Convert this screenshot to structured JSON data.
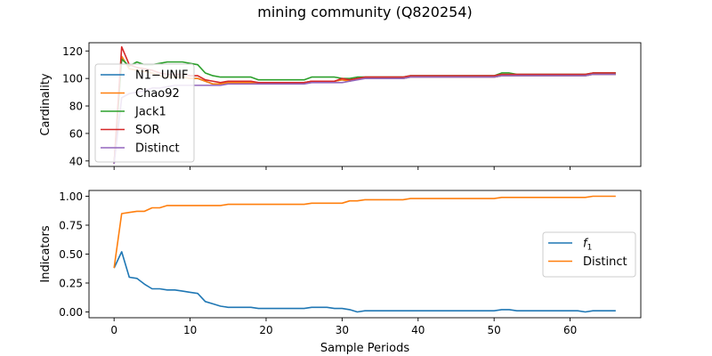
{
  "figure": {
    "title": "mining community (Q820254)"
  },
  "chart_data": [
    {
      "type": "line",
      "panel": "top",
      "ylabel": "Cardinality",
      "xlabel": "",
      "xlim": [
        -3.3,
        69.3
      ],
      "ylim": [
        36,
        126
      ],
      "xticks": [
        0,
        10,
        20,
        30,
        40,
        50,
        60
      ],
      "yticks": [
        40,
        60,
        80,
        100,
        120
      ],
      "show_xticklabels": false,
      "grid": false,
      "legend": "upper-left",
      "series": [
        {
          "name": "N1−UNIF",
          "color": "#1f77b4",
          "x": [
            0,
            1,
            2,
            3,
            4,
            5,
            6,
            7,
            8,
            9,
            10,
            11,
            12,
            13,
            14,
            15,
            16,
            17,
            18,
            19,
            20,
            25,
            26,
            29,
            30,
            31,
            32,
            33,
            38,
            39,
            50,
            51,
            52,
            53,
            61,
            62,
            63,
            66
          ],
          "y": [
            38,
            116,
            107,
            106,
            105,
            104,
            102,
            101,
            101,
            101,
            100,
            100,
            98,
            96,
            96,
            97,
            97,
            97,
            97,
            97,
            97,
            97,
            98,
            98,
            99,
            98,
            100,
            100,
            100,
            101,
            101,
            102,
            102,
            102,
            102,
            102,
            103,
            103
          ]
        },
        {
          "name": "Chao92",
          "color": "#ff7f0e",
          "x": [
            0,
            1,
            2,
            3,
            4,
            5,
            6,
            7,
            8,
            9,
            10,
            11,
            12,
            13,
            14,
            15,
            16,
            17,
            18,
            19,
            20,
            25,
            26,
            29,
            30,
            31,
            32,
            33,
            38,
            39,
            50,
            51,
            52,
            53,
            61,
            62,
            63,
            66
          ],
          "y": [
            38,
            116,
            107,
            106,
            105,
            104,
            102,
            101,
            101,
            101,
            100,
            100,
            98,
            96,
            96,
            97,
            97,
            97,
            97,
            97,
            97,
            97,
            98,
            98,
            99,
            98,
            100,
            100,
            100,
            101,
            101,
            102,
            102,
            102,
            102,
            102,
            103,
            103
          ]
        },
        {
          "name": "Jack1",
          "color": "#2ca02c",
          "x": [
            0,
            1,
            2,
            3,
            4,
            5,
            6,
            7,
            8,
            9,
            10,
            11,
            12,
            13,
            14,
            15,
            16,
            17,
            18,
            19,
            20,
            25,
            26,
            29,
            30,
            31,
            32,
            33,
            38,
            39,
            50,
            51,
            52,
            53,
            61,
            62,
            63,
            66
          ],
          "y": [
            38,
            114,
            109,
            112,
            110,
            110,
            111,
            112,
            112,
            112,
            111,
            110,
            104,
            102,
            101,
            101,
            101,
            101,
            101,
            99,
            99,
            99,
            101,
            101,
            100,
            100,
            101,
            101,
            101,
            102,
            102,
            104,
            104,
            103,
            103,
            103,
            104,
            104
          ]
        },
        {
          "name": "SOR",
          "color": "#d62728",
          "x": [
            0,
            1,
            2,
            3,
            4,
            5,
            6,
            7,
            8,
            9,
            10,
            11,
            12,
            13,
            14,
            15,
            16,
            17,
            18,
            19,
            20,
            25,
            26,
            29,
            30,
            31,
            32,
            33,
            38,
            39,
            50,
            51,
            52,
            53,
            61,
            62,
            63,
            66
          ],
          "y": [
            38,
            123,
            110,
            108,
            107,
            106,
            104,
            103,
            103,
            103,
            102,
            102,
            99,
            98,
            97,
            98,
            98,
            98,
            98,
            97,
            97,
            97,
            98,
            98,
            100,
            99,
            100,
            101,
            101,
            102,
            102,
            103,
            103,
            103,
            103,
            103,
            104,
            104
          ]
        },
        {
          "name": "Distinct",
          "color": "#9467bd",
          "x": [
            0,
            1,
            2,
            3,
            4,
            5,
            6,
            7,
            8,
            9,
            10,
            11,
            12,
            13,
            14,
            15,
            16,
            17,
            18,
            19,
            20,
            25,
            26,
            29,
            30,
            31,
            32,
            33,
            38,
            39,
            50,
            51,
            52,
            53,
            61,
            62,
            63,
            66
          ],
          "y": [
            38,
            86,
            89,
            90,
            91,
            93,
            93,
            94,
            95,
            95,
            95,
            95,
            95,
            95,
            95,
            96,
            96,
            96,
            96,
            96,
            96,
            96,
            97,
            97,
            97,
            98,
            99,
            100,
            100,
            101,
            101,
            102,
            102,
            102,
            102,
            102,
            103,
            103
          ]
        }
      ]
    },
    {
      "type": "line",
      "panel": "bottom",
      "ylabel": "Indicators",
      "xlabel": "Sample Periods",
      "xlim": [
        -3.3,
        69.3
      ],
      "ylim": [
        -0.05,
        1.05
      ],
      "xticks": [
        0,
        10,
        20,
        30,
        40,
        50,
        60
      ],
      "yticks": [
        0.0,
        0.25,
        0.5,
        0.75,
        1.0
      ],
      "ytick_labels": [
        "0.00",
        "0.25",
        "0.50",
        "0.75",
        "1.00"
      ],
      "show_xticklabels": true,
      "grid": false,
      "legend": "center-right",
      "series": [
        {
          "name": "f1",
          "name_main": "f",
          "name_sub": "1",
          "color": "#1f77b4",
          "x": [
            0,
            1,
            2,
            3,
            4,
            5,
            6,
            7,
            8,
            9,
            10,
            11,
            12,
            13,
            14,
            15,
            16,
            17,
            18,
            19,
            20,
            21,
            22,
            23,
            24,
            25,
            26,
            27,
            28,
            29,
            30,
            31,
            32,
            33,
            34,
            35,
            36,
            37,
            38,
            39,
            40,
            41,
            42,
            43,
            44,
            45,
            46,
            47,
            48,
            49,
            50,
            51,
            52,
            53,
            54,
            55,
            56,
            57,
            58,
            59,
            60,
            61,
            62,
            63,
            64,
            65,
            66
          ],
          "y": [
            0.38,
            0.52,
            0.3,
            0.29,
            0.24,
            0.2,
            0.2,
            0.19,
            0.19,
            0.18,
            0.17,
            0.16,
            0.09,
            0.07,
            0.05,
            0.04,
            0.04,
            0.04,
            0.04,
            0.03,
            0.03,
            0.03,
            0.03,
            0.03,
            0.03,
            0.03,
            0.04,
            0.04,
            0.04,
            0.03,
            0.03,
            0.02,
            0.0,
            0.01,
            0.01,
            0.01,
            0.01,
            0.01,
            0.01,
            0.01,
            0.01,
            0.01,
            0.01,
            0.01,
            0.01,
            0.01,
            0.01,
            0.01,
            0.01,
            0.01,
            0.01,
            0.02,
            0.02,
            0.01,
            0.01,
            0.01,
            0.01,
            0.01,
            0.01,
            0.01,
            0.01,
            0.01,
            0.0,
            0.01,
            0.01,
            0.01,
            0.01
          ]
        },
        {
          "name": "Distinct",
          "color": "#ff7f0e",
          "x": [
            0,
            1,
            2,
            3,
            4,
            5,
            6,
            7,
            8,
            9,
            10,
            11,
            12,
            13,
            14,
            15,
            16,
            17,
            18,
            19,
            20,
            21,
            22,
            23,
            24,
            25,
            26,
            27,
            28,
            29,
            30,
            31,
            32,
            33,
            34,
            35,
            36,
            37,
            38,
            39,
            40,
            41,
            42,
            43,
            44,
            45,
            46,
            47,
            48,
            49,
            50,
            51,
            52,
            53,
            54,
            55,
            56,
            57,
            58,
            59,
            60,
            61,
            62,
            63,
            64,
            65,
            66
          ],
          "y": [
            0.38,
            0.85,
            0.86,
            0.87,
            0.87,
            0.9,
            0.9,
            0.92,
            0.92,
            0.92,
            0.92,
            0.92,
            0.92,
            0.92,
            0.92,
            0.93,
            0.93,
            0.93,
            0.93,
            0.93,
            0.93,
            0.93,
            0.93,
            0.93,
            0.93,
            0.93,
            0.94,
            0.94,
            0.94,
            0.94,
            0.94,
            0.96,
            0.96,
            0.97,
            0.97,
            0.97,
            0.97,
            0.97,
            0.97,
            0.98,
            0.98,
            0.98,
            0.98,
            0.98,
            0.98,
            0.98,
            0.98,
            0.98,
            0.98,
            0.98,
            0.98,
            0.99,
            0.99,
            0.99,
            0.99,
            0.99,
            0.99,
            0.99,
            0.99,
            0.99,
            0.99,
            0.99,
            0.99,
            1.0,
            1.0,
            1.0,
            1.0
          ]
        }
      ]
    }
  ]
}
